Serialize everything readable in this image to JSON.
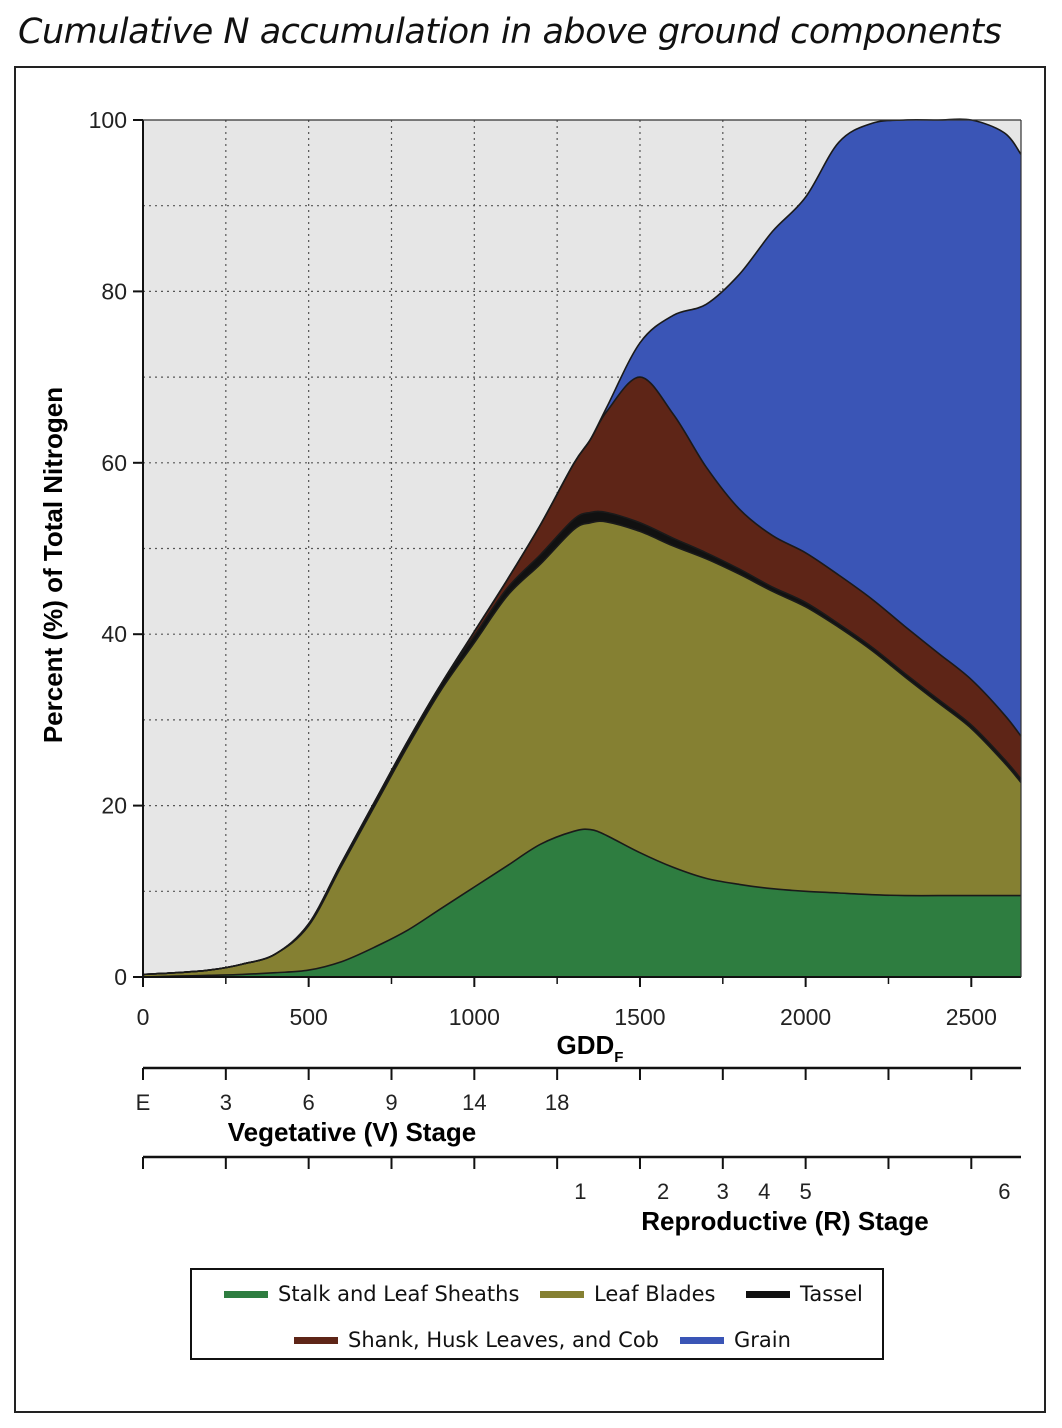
{
  "title": "Cumulative N accumulation in above ground components",
  "chart_data": {
    "type": "area",
    "stacked": true,
    "xlabel": "GDD",
    "xlabel_subscript": "F",
    "ylabel": "Percent (%) of Total Nitrogen",
    "xlim": [
      0,
      2650
    ],
    "ylim": [
      0,
      100
    ],
    "x_ticks": [
      0,
      500,
      1000,
      1500,
      2000,
      2500
    ],
    "y_ticks": [
      0,
      20,
      40,
      60,
      80,
      100
    ],
    "grid": true,
    "x": [
      0,
      100,
      200,
      300,
      400,
      500,
      600,
      700,
      800,
      900,
      1000,
      1100,
      1200,
      1300,
      1350,
      1400,
      1500,
      1600,
      1700,
      1800,
      1900,
      2000,
      2100,
      2200,
      2300,
      2400,
      2500,
      2600,
      2650
    ],
    "series": [
      {
        "name": "Stalk and Leaf Sheaths",
        "color": "#2e7d40",
        "values": [
          0,
          0.1,
          0.2,
          0.3,
          0.5,
          0.8,
          1.8,
          3.5,
          5.5,
          8,
          10.5,
          13,
          15.5,
          17,
          17.2,
          16.5,
          14.5,
          12.8,
          11.5,
          10.8,
          10.3,
          10,
          9.8,
          9.6,
          9.5,
          9.5,
          9.5,
          9.5,
          9.5
        ]
      },
      {
        "name": "Leaf Blades",
        "color": "#858032",
        "values": [
          0.3,
          0.4,
          0.6,
          1.2,
          2.2,
          5.2,
          11.2,
          16.5,
          21.5,
          25.5,
          28.5,
          31.5,
          32.7,
          35.2,
          35.8,
          36.6,
          37.5,
          37.5,
          37.3,
          36.2,
          34.7,
          33.2,
          31,
          28.5,
          25.5,
          22.5,
          19.5,
          15.5,
          13.2
        ]
      },
      {
        "name": "Tassel",
        "color": "#111111",
        "values": [
          0,
          0,
          0,
          0,
          0,
          0.2,
          0.4,
          0.5,
          0.6,
          0.7,
          0.8,
          0.9,
          1.1,
          1.2,
          1.2,
          1.1,
          1,
          0.9,
          0.7,
          0.6,
          0.5,
          0.5,
          0.4,
          0.4,
          0.4,
          0.4,
          0.4,
          0.4,
          0.4
        ]
      },
      {
        "name": "Shank, Husk Leaves, and Cob",
        "color": "#5e2517",
        "values": [
          0,
          0,
          0,
          0,
          0,
          0,
          0,
          0,
          0,
          0,
          0.5,
          1,
          3.5,
          6.5,
          8.5,
          11.8,
          17,
          14.5,
          10,
          7,
          6,
          5.8,
          5.7,
          5.6,
          5.5,
          5.4,
          5.3,
          5.2,
          5
        ]
      },
      {
        "name": "Grain",
        "color": "#3a55b6",
        "values": [
          0,
          0,
          0,
          0,
          0,
          0,
          0,
          0,
          0,
          0,
          0,
          0,
          0,
          0,
          0,
          0.5,
          4,
          11.5,
          19,
          27.4,
          35.5,
          41.5,
          50.5,
          55.5,
          59.1,
          62.2,
          65.3,
          67.9,
          67.9
        ]
      }
    ],
    "vegetative_stage": {
      "label": "Vegetative (V) Stage",
      "stages": [
        {
          "label": "E",
          "gdd": 0
        },
        {
          "label": "3",
          "gdd": 250
        },
        {
          "label": "6",
          "gdd": 500
        },
        {
          "label": "9",
          "gdd": 750
        },
        {
          "label": "14",
          "gdd": 1000
        },
        {
          "label": "18",
          "gdd": 1250
        }
      ]
    },
    "reproductive_stage": {
      "label": "Reproductive (R) Stage",
      "stages": [
        {
          "label": "1",
          "gdd": 1320
        },
        {
          "label": "2",
          "gdd": 1570
        },
        {
          "label": "3",
          "gdd": 1750
        },
        {
          "label": "4",
          "gdd": 1875
        },
        {
          "label": "5",
          "gdd": 2000
        },
        {
          "label": "6",
          "gdd": 2600
        }
      ]
    },
    "legend_position": "bottom"
  }
}
